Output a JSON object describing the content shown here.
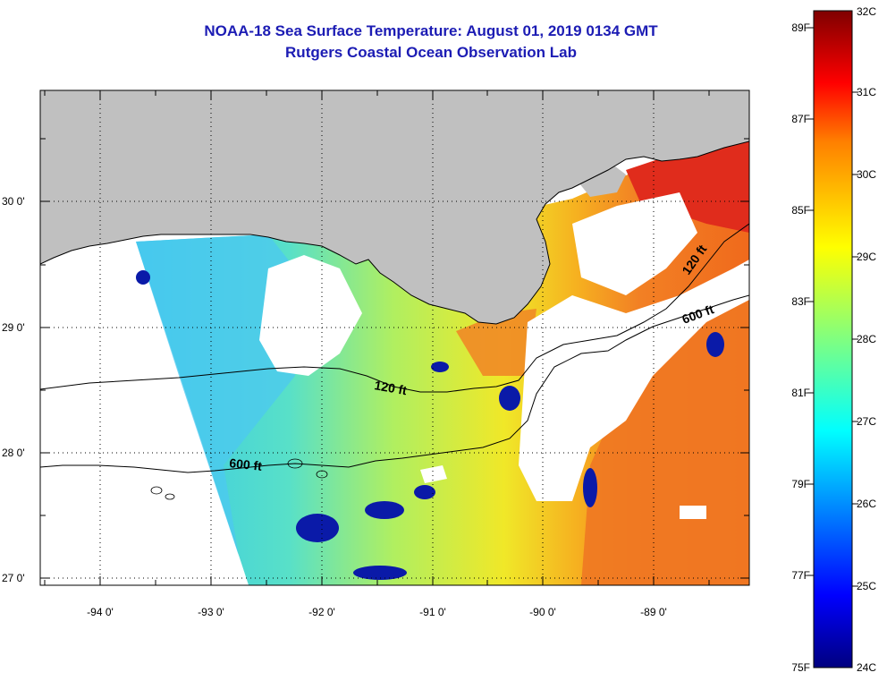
{
  "title": "NOAA-18 Sea Surface Temperature:  August 01, 2019 0134 GMT",
  "subtitle": "Rutgers Coastal Ocean Observation Lab",
  "map": {
    "lat_labels": [
      "30 0'",
      "29 0'",
      "28 0'",
      "27 0'"
    ],
    "lon_labels": [
      "-94 0'",
      "-93 0'",
      "-92 0'",
      "-91 0'",
      "-90 0'",
      "-89 0'"
    ],
    "isobaths": [
      "120 ft",
      "600 ft",
      "120 ft",
      "600 ft"
    ]
  },
  "colorbar": {
    "fahrenheit_labels": [
      "89F",
      "87F",
      "85F",
      "83F",
      "81F",
      "79F",
      "77F",
      "75F"
    ],
    "celsius_labels": [
      "32C",
      "31C",
      "30C",
      "29C",
      "28C",
      "27C",
      "26C",
      "25C",
      "24C"
    ]
  },
  "colors": {
    "title": "#1c1cb4",
    "land": "#c0c0c0",
    "coolest": "#00007f",
    "warmest": "#7f0000"
  }
}
